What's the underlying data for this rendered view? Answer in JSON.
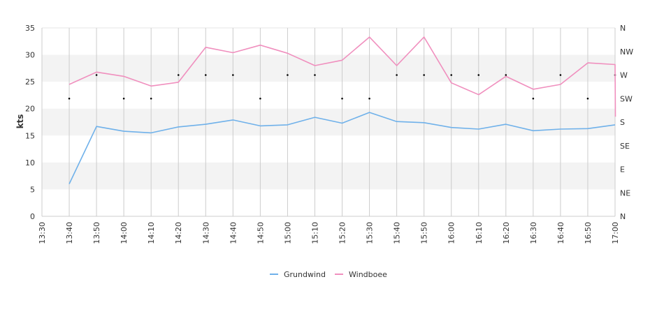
{
  "chart_data": {
    "type": "line",
    "ylabel": "kts",
    "ylim": [
      0,
      35
    ],
    "y_ticks": [
      "0",
      "5",
      "10",
      "15",
      "20",
      "25",
      "30",
      "35"
    ],
    "direction_ticks": [
      "N",
      "NE",
      "E",
      "SE",
      "S",
      "SW",
      "W",
      "NW",
      "N"
    ],
    "x_ticks": [
      "13:30",
      "13:40",
      "13:50",
      "14:00",
      "14:10",
      "14:20",
      "14:30",
      "14:40",
      "14:50",
      "15:00",
      "15:10",
      "15:20",
      "15:30",
      "15:40",
      "15:50",
      "16:00",
      "16:10",
      "16:20",
      "16:30",
      "16:40",
      "16:50",
      "17:00"
    ],
    "x": [
      "13:40",
      "13:50",
      "14:00",
      "14:10",
      "14:20",
      "14:30",
      "14:40",
      "14:50",
      "15:00",
      "15:10",
      "15:20",
      "15:30",
      "15:40",
      "15:50",
      "16:00",
      "16:10",
      "16:20",
      "16:30",
      "16:40",
      "16:50",
      "17:00"
    ],
    "series": [
      {
        "name": "Grundwind",
        "color": "#6fb1ea",
        "values": [
          6.0,
          16.7,
          15.8,
          15.5,
          16.6,
          17.1,
          17.9,
          16.8,
          17.0,
          18.4,
          17.3,
          19.3,
          17.6,
          17.4,
          16.5,
          16.2,
          17.1,
          15.9,
          16.2,
          16.3,
          17.0
        ]
      },
      {
        "name": "Windboee",
        "color": "#f08fbe",
        "values": [
          24.5,
          26.8,
          26.0,
          24.2,
          24.9,
          31.4,
          30.4,
          31.8,
          30.3,
          28.0,
          29.0,
          33.3,
          28.0,
          33.3,
          24.8,
          22.6,
          26.0,
          23.6,
          24.5,
          28.5,
          28.2
        ]
      }
    ],
    "direction_deg": [
      225,
      270,
      225,
      225,
      270,
      270,
      270,
      225,
      270,
      270,
      225,
      225,
      270,
      270,
      270,
      270,
      270,
      225,
      270,
      225,
      270
    ],
    "direction_color": "#000000",
    "legend": "bottom-center",
    "grid": true,
    "band_color": "#f3f3f3",
    "grid_color": "#cccccc"
  }
}
